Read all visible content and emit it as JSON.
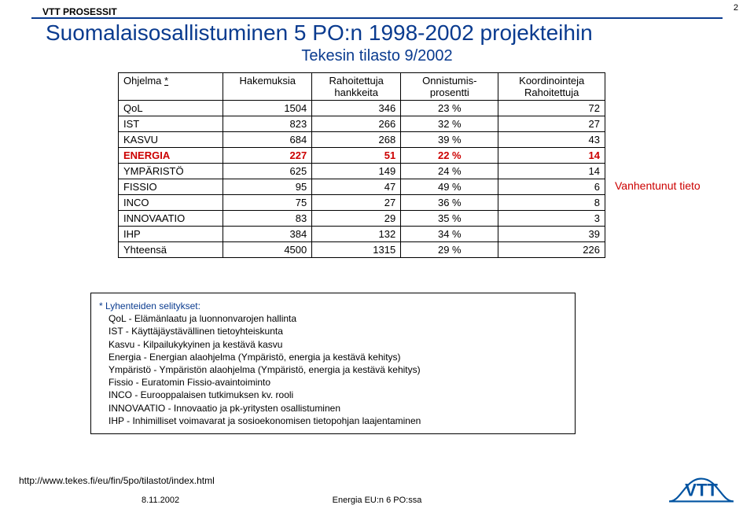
{
  "page_number": "2",
  "brand": "VTT PROSESSIT",
  "title": "Suomalaisosallistuminen 5 PO:n 1998-2002 projekteihin",
  "subtitle": "Tekesin tilasto 9/2002",
  "table": {
    "headers": {
      "program": "Ohjelma",
      "program_note": "*",
      "hakemuksia": "Hakemuksia",
      "rahoitettuja": "Rahoitettuja hankkeita",
      "onnistumis": "Onnistumis-prosentti",
      "koord": "Koordinointeja Rahoitettuja"
    },
    "rows": [
      {
        "p": "QoL",
        "h": "1504",
        "r": "346",
        "o": "23 %",
        "k": "72",
        "cls": ""
      },
      {
        "p": "IST",
        "h": "823",
        "r": "266",
        "o": "32 %",
        "k": "27",
        "cls": ""
      },
      {
        "p": "KASVU",
        "h": "684",
        "r": "268",
        "o": "39 %",
        "k": "43",
        "cls": ""
      },
      {
        "p": "ENERGIA",
        "h": "227",
        "r": "51",
        "o": "22 %",
        "k": "14",
        "cls": "energia"
      },
      {
        "p": "YMPÄRISTÖ",
        "h": "625",
        "r": "149",
        "o": "24 %",
        "k": "14",
        "cls": ""
      },
      {
        "p": "FISSIO",
        "h": "95",
        "r": "47",
        "o": "49 %",
        "k": "6",
        "cls": ""
      },
      {
        "p": "INCO",
        "h": "75",
        "r": "27",
        "o": "36 %",
        "k": "8",
        "cls": ""
      },
      {
        "p": "INNOVAATIO",
        "h": "83",
        "r": "29",
        "o": "35 %",
        "k": "3",
        "cls": ""
      },
      {
        "p": "IHP",
        "h": "384",
        "r": "132",
        "o": "34 %",
        "k": "39",
        "cls": ""
      },
      {
        "p": "Yhteensä",
        "h": "4500",
        "r": "1315",
        "o": "29 %",
        "k": "226",
        "cls": ""
      }
    ]
  },
  "side_note": "Vanhentunut tieto",
  "legend": {
    "header": "* Lyhenteiden selitykset:",
    "lines": [
      "QoL - Elämänlaatu ja luonnonvarojen hallinta",
      "IST -  Käyttäjäystävällinen tietoyhteiskunta",
      "Kasvu - Kilpailukykyinen ja kestävä kasvu",
      "Energia - Energian alaohjelma (Ympäristö, energia ja kestävä kehitys)",
      "Ympäristö - Ympäristön alaohjelma (Ympäristö, energia ja kestävä kehitys)",
      "Fissio - Euratomin Fissio-avaintoiminto",
      "INCO - Eurooppalaisen tutkimuksen kv. rooli",
      "INNOVAATIO - Innovaatio ja pk-yritysten osallistuminen",
      "IHP - Inhimilliset voimavarat ja sosioekonomisen tietopohjan laajentaminen"
    ]
  },
  "footer": {
    "url": "http://www.tekes.fi/eu/fin/5po/tilastot/index.html",
    "date": "8.11.2002",
    "center": "Energia EU:n 6 PO:ssa"
  },
  "logo_text": "VTT",
  "colors": {
    "brand_blue": "#0a3b8f",
    "alert_red": "#cc0000",
    "logo_blue": "#0053a1"
  }
}
